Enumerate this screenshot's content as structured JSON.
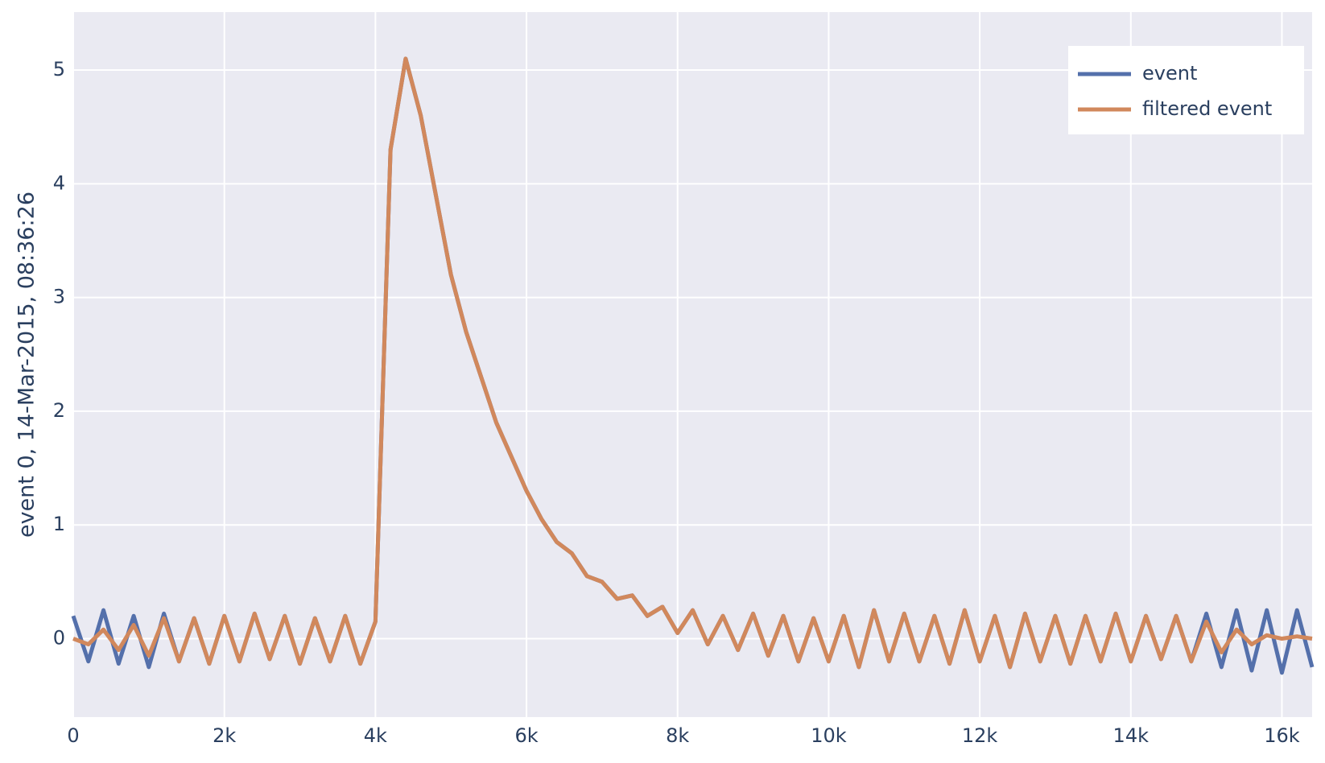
{
  "chart_data": {
    "type": "line",
    "y_label": "event 0, 14-Mar-2015, 08:36:26",
    "x": [
      0,
      200,
      400,
      600,
      800,
      1000,
      1200,
      1400,
      1600,
      1800,
      2000,
      2200,
      2400,
      2600,
      2800,
      3000,
      3200,
      3400,
      3600,
      3800,
      4000,
      4200,
      4400,
      4600,
      4800,
      5000,
      5200,
      5400,
      5600,
      5800,
      6000,
      6200,
      6400,
      6600,
      6800,
      7000,
      7200,
      7400,
      7600,
      7800,
      8000,
      8200,
      8400,
      8600,
      8800,
      9000,
      9200,
      9400,
      9600,
      9800,
      10000,
      10200,
      10400,
      10600,
      10800,
      11000,
      11200,
      11400,
      11600,
      11800,
      12000,
      12200,
      12400,
      12600,
      12800,
      13000,
      13200,
      13400,
      13600,
      13800,
      14000,
      14200,
      14400,
      14600,
      14800,
      15000,
      15200,
      15400,
      15600,
      15800,
      16000,
      16200,
      16400
    ],
    "series": [
      {
        "name": "event",
        "color": "#5470ab",
        "values": [
          0.2,
          -0.2,
          0.25,
          -0.22,
          0.2,
          -0.25,
          0.22,
          -0.2,
          0.18,
          -0.22,
          0.2,
          -0.2,
          0.22,
          -0.18,
          0.2,
          -0.22,
          0.18,
          -0.2,
          0.2,
          -0.22,
          0.15,
          4.3,
          5.1,
          4.6,
          3.9,
          3.2,
          2.7,
          2.3,
          1.9,
          1.6,
          1.3,
          1.05,
          0.85,
          0.75,
          0.55,
          0.5,
          0.35,
          0.38,
          0.2,
          0.28,
          0.05,
          0.25,
          -0.05,
          0.2,
          -0.1,
          0.22,
          -0.15,
          0.2,
          -0.2,
          0.18,
          -0.2,
          0.2,
          -0.25,
          0.25,
          -0.2,
          0.22,
          -0.2,
          0.2,
          -0.22,
          0.25,
          -0.2,
          0.2,
          -0.25,
          0.22,
          -0.2,
          0.2,
          -0.22,
          0.2,
          -0.2,
          0.22,
          -0.2,
          0.2,
          -0.18,
          0.2,
          -0.2,
          0.22,
          -0.25,
          0.25,
          -0.28,
          0.25,
          -0.3,
          0.25,
          -0.25
        ]
      },
      {
        "name": "filtered event",
        "color": "#d1885c",
        "values": [
          0.0,
          -0.05,
          0.08,
          -0.1,
          0.12,
          -0.15,
          0.18,
          -0.2,
          0.18,
          -0.22,
          0.2,
          -0.2,
          0.22,
          -0.18,
          0.2,
          -0.22,
          0.18,
          -0.2,
          0.2,
          -0.22,
          0.15,
          4.3,
          5.1,
          4.6,
          3.9,
          3.2,
          2.7,
          2.3,
          1.9,
          1.6,
          1.3,
          1.05,
          0.85,
          0.75,
          0.55,
          0.5,
          0.35,
          0.38,
          0.2,
          0.28,
          0.05,
          0.25,
          -0.05,
          0.2,
          -0.1,
          0.22,
          -0.15,
          0.2,
          -0.2,
          0.18,
          -0.2,
          0.2,
          -0.25,
          0.25,
          -0.2,
          0.22,
          -0.2,
          0.2,
          -0.22,
          0.25,
          -0.2,
          0.2,
          -0.25,
          0.22,
          -0.2,
          0.2,
          -0.22,
          0.2,
          -0.2,
          0.22,
          -0.2,
          0.2,
          -0.18,
          0.2,
          -0.2,
          0.15,
          -0.12,
          0.08,
          -0.05,
          0.03,
          0,
          0.02,
          0
        ]
      }
    ],
    "xlim": [
      0,
      16400
    ],
    "ylim": [
      -0.69,
      5.51
    ],
    "xticks": [
      0,
      {
        "value": 2000,
        "label": "2k"
      },
      {
        "value": 4000,
        "label": "4k"
      },
      {
        "value": 6000,
        "label": "6k"
      },
      {
        "value": 8000,
        "label": "8k"
      },
      {
        "value": 10000,
        "label": "10k"
      },
      {
        "value": 12000,
        "label": "12k"
      },
      {
        "value": 14000,
        "label": "14k"
      },
      {
        "value": 16000,
        "label": "16k"
      }
    ],
    "yticks": [
      0,
      1,
      2,
      3,
      4,
      5
    ],
    "grid": true,
    "legend": "top-right"
  }
}
